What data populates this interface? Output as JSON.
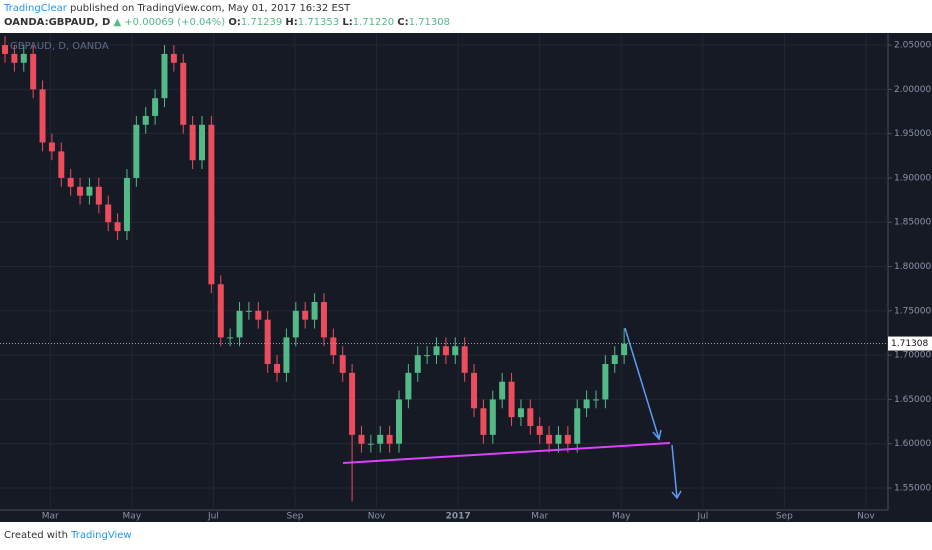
{
  "header": {
    "author": "TradingClear",
    "published": "published on TradingView.com, May 01, 2017 16:32 EST",
    "symbol": "OANDA:GBPAUD, D",
    "change": "▲ +0.00069 (+0.04%)",
    "o_label": "O:",
    "o": "1.71239",
    "h_label": "H:",
    "h": "1.71353",
    "l_label": "L:",
    "l": "1.71220",
    "c_label": "C:",
    "c": "1.71308"
  },
  "chart_data": {
    "type": "candlestick",
    "legend": "GBPAUD, D, OANDA",
    "up_color": "#53b987",
    "down_color": "#eb4d5c",
    "grid": true,
    "last_price": 1.71308,
    "x": [
      1.89,
      2.12,
      2.35,
      2.58,
      2.81,
      3.04,
      3.27,
      3.5,
      3.73,
      3.96,
      4.19,
      4.42,
      4.65,
      4.88,
      5.11,
      5.34,
      5.57,
      5.8,
      6.03,
      6.26,
      6.49,
      6.72,
      6.95,
      7.18,
      7.41,
      7.64,
      7.87,
      8.1,
      8.33,
      8.56,
      8.79,
      9.02,
      9.25,
      9.48,
      9.71,
      9.94,
      10.17,
      10.4,
      10.63,
      10.86,
      11.09,
      11.32,
      11.55,
      11.78,
      12.01,
      12.24,
      12.47,
      12.7,
      12.93,
      13.16,
      13.39,
      13.62,
      13.85,
      14.08,
      14.31,
      14.54,
      14.77,
      15.0,
      15.23,
      15.46,
      15.69,
      15.92,
      16.15,
      16.38,
      16.61,
      16.84,
      17.07
    ],
    "open": [
      2.05,
      2.04,
      2.03,
      2.04,
      2.0,
      1.94,
      1.93,
      1.9,
      1.89,
      1.88,
      1.89,
      1.87,
      1.85,
      1.84,
      1.9,
      1.96,
      1.97,
      1.99,
      2.04,
      2.03,
      1.96,
      1.92,
      1.96,
      1.78,
      1.72,
      1.72,
      1.75,
      1.75,
      1.74,
      1.69,
      1.68,
      1.72,
      1.75,
      1.74,
      1.76,
      1.72,
      1.7,
      1.68,
      1.61,
      1.6,
      1.6,
      1.61,
      1.6,
      1.65,
      1.68,
      1.7,
      1.7,
      1.71,
      1.7,
      1.71,
      1.68,
      1.64,
      1.61,
      1.65,
      1.67,
      1.63,
      1.64,
      1.62,
      1.61,
      1.6,
      1.61,
      1.6,
      1.64,
      1.65,
      1.65,
      1.69,
      1.7
    ],
    "high": [
      2.06,
      2.05,
      2.05,
      2.05,
      2.01,
      1.95,
      1.94,
      1.91,
      1.9,
      1.9,
      1.9,
      1.88,
      1.86,
      1.91,
      1.97,
      1.98,
      2.0,
      2.05,
      2.05,
      2.04,
      1.97,
      1.97,
      1.97,
      1.79,
      1.73,
      1.76,
      1.76,
      1.76,
      1.75,
      1.7,
      1.73,
      1.76,
      1.76,
      1.77,
      1.77,
      1.73,
      1.71,
      1.69,
      1.62,
      1.61,
      1.62,
      1.62,
      1.66,
      1.69,
      1.71,
      1.71,
      1.72,
      1.72,
      1.72,
      1.72,
      1.69,
      1.65,
      1.66,
      1.68,
      1.68,
      1.65,
      1.65,
      1.63,
      1.62,
      1.62,
      1.62,
      1.65,
      1.66,
      1.66,
      1.7,
      1.71,
      1.73
    ],
    "low": [
      2.03,
      2.02,
      2.02,
      1.99,
      1.93,
      1.92,
      1.89,
      1.88,
      1.87,
      1.87,
      1.86,
      1.84,
      1.83,
      1.83,
      1.89,
      1.95,
      1.96,
      1.98,
      2.02,
      1.95,
      1.91,
      1.91,
      1.77,
      1.71,
      1.71,
      1.71,
      1.74,
      1.73,
      1.68,
      1.67,
      1.67,
      1.71,
      1.73,
      1.73,
      1.71,
      1.69,
      1.67,
      1.535,
      1.59,
      1.59,
      1.59,
      1.59,
      1.59,
      1.64,
      1.67,
      1.69,
      1.69,
      1.69,
      1.69,
      1.67,
      1.63,
      1.6,
      1.6,
      1.64,
      1.62,
      1.62,
      1.61,
      1.6,
      1.59,
      1.59,
      1.59,
      1.59,
      1.63,
      1.64,
      1.64,
      1.68,
      1.69
    ],
    "close": [
      2.04,
      2.03,
      2.04,
      2.0,
      1.94,
      1.93,
      1.9,
      1.89,
      1.88,
      1.89,
      1.87,
      1.85,
      1.84,
      1.9,
      1.96,
      1.97,
      1.99,
      2.04,
      2.03,
      1.96,
      1.92,
      1.96,
      1.78,
      1.72,
      1.72,
      1.75,
      1.75,
      1.74,
      1.69,
      1.68,
      1.72,
      1.75,
      1.74,
      1.76,
      1.72,
      1.7,
      1.68,
      1.61,
      1.6,
      1.6,
      1.61,
      1.6,
      1.65,
      1.68,
      1.7,
      1.7,
      1.71,
      1.7,
      1.71,
      1.68,
      1.64,
      1.61,
      1.65,
      1.67,
      1.63,
      1.64,
      1.62,
      1.61,
      1.6,
      1.61,
      1.6,
      1.64,
      1.65,
      1.65,
      1.69,
      1.7,
      1.713
    ],
    "xlim": [
      1.767,
      23.54
    ],
    "xticks": [
      {
        "value": 3,
        "label": "Mar"
      },
      {
        "value": 5,
        "label": "May"
      },
      {
        "value": 7,
        "label": "Jul"
      },
      {
        "value": 9,
        "label": "Sep"
      },
      {
        "value": 11,
        "label": "Nov"
      },
      {
        "value": 13,
        "label": "2017"
      },
      {
        "value": 15,
        "label": "Mar"
      },
      {
        "value": 17,
        "label": "May"
      },
      {
        "value": 19,
        "label": "Jul"
      },
      {
        "value": 21,
        "label": "Sep"
      },
      {
        "value": 23,
        "label": "Nov"
      }
    ],
    "ylim": [
      1.5252,
      2.0636
    ],
    "yticks": [
      {
        "value": 1.55,
        "label": "1.55000"
      },
      {
        "value": 1.6,
        "label": "1.60000"
      },
      {
        "value": 1.65,
        "label": "1.65000"
      },
      {
        "value": 1.7,
        "label": "1.70000"
      },
      {
        "value": 1.75,
        "label": "1.75000"
      },
      {
        "value": 1.8,
        "label": "1.80000"
      },
      {
        "value": 1.85,
        "label": "1.85000"
      },
      {
        "value": 1.9,
        "label": "1.90000"
      },
      {
        "value": 1.95,
        "label": "1.95000"
      },
      {
        "value": 2.0,
        "label": "2.00000"
      },
      {
        "value": 2.05,
        "label": "2.05000"
      }
    ]
  },
  "footer": {
    "created": "Created with",
    "brand": "TradingView"
  }
}
